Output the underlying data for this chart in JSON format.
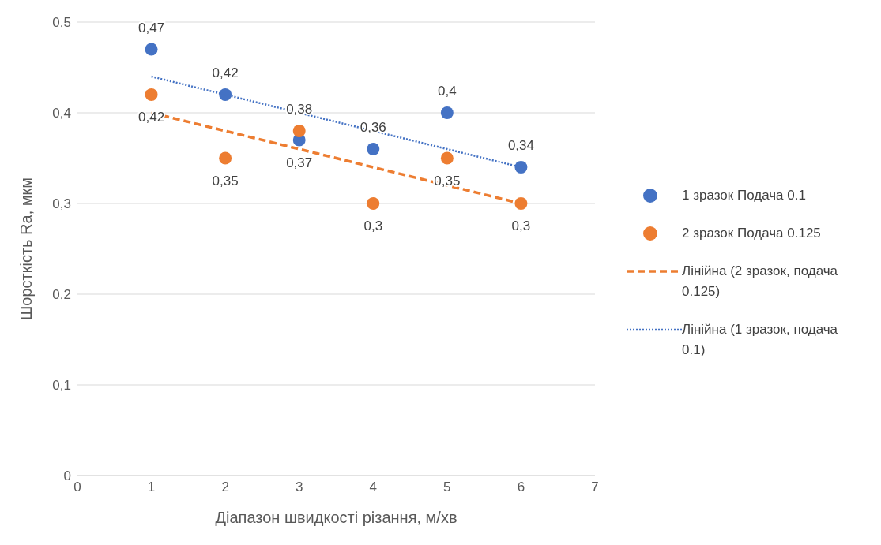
{
  "chart_data": {
    "type": "scatter",
    "xlabel": "Діапазон швидкості різання, м/хв",
    "ylabel": "Шорсткість Ra, мкм",
    "x": [
      1,
      2,
      3,
      4,
      5,
      6
    ],
    "series": [
      {
        "name": "1 зразок Подача 0.1",
        "color": "#4472c4",
        "values": [
          0.47,
          0.42,
          0.37,
          0.36,
          0.4,
          0.34
        ],
        "value_labels": [
          "0,47",
          "0,42",
          "0,37",
          "0,36",
          "0,4",
          "0,34"
        ],
        "marker": "circle"
      },
      {
        "name": "2 зразок Подача 0.125",
        "color": "#ed7d31",
        "values": [
          0.42,
          0.35,
          0.38,
          0.3,
          0.35,
          0.3
        ],
        "value_labels": [
          "0,42",
          "0,35",
          "0,38",
          "0,3",
          "0,35",
          "0,3"
        ],
        "marker": "circle"
      },
      {
        "type": "line",
        "name": "Лінійна (2 зразок, подача 0.125)",
        "color": "#ed7d31",
        "values": [
          0.4,
          0.38,
          0.36,
          0.34,
          0.32,
          0.3
        ],
        "line_style": "dashed",
        "marker": "none"
      },
      {
        "type": "line",
        "name": "Лінійна (1 зразок, подача 0.1)",
        "color": "#4472c4",
        "values": [
          0.44,
          0.42,
          0.4,
          0.38,
          0.36,
          0.34
        ],
        "line_style": "dotted",
        "marker": "none"
      }
    ],
    "xlim": [
      0,
      7
    ],
    "xticks": [
      0,
      1,
      2,
      3,
      4,
      5,
      6,
      7
    ],
    "ylim": [
      0,
      0.5
    ],
    "yticks": [
      {
        "value": 0,
        "label": "0"
      },
      {
        "value": 0.1,
        "label": "0,1"
      },
      {
        "value": 0.2,
        "label": "0,2"
      },
      {
        "value": 0.3,
        "label": "0,3"
      },
      {
        "value": 0.4,
        "label": "0,4"
      },
      {
        "value": 0.5,
        "label": "0,5"
      }
    ],
    "grid": "y",
    "legend": "right"
  }
}
